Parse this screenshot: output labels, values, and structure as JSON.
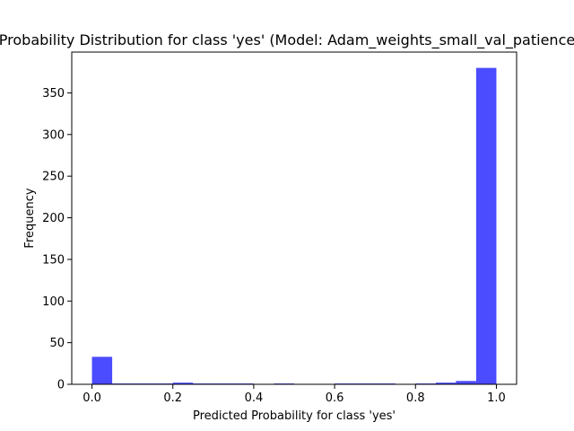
{
  "chart_data": {
    "type": "bar",
    "title": "Probability Distribution for class 'yes' (Model: Adam_weights_small_val_patience",
    "xlabel": "Predicted Probability for class 'yes'",
    "ylabel": "Frequency",
    "xlim": [
      -0.05,
      1.05
    ],
    "ylim": [
      0,
      399
    ],
    "xticks": [
      "0.0",
      "0.2",
      "0.4",
      "0.6",
      "0.8",
      "1.0"
    ],
    "yticks": [
      "0",
      "50",
      "100",
      "150",
      "200",
      "250",
      "300",
      "350"
    ],
    "bar_color": "#4b4bff",
    "bins": [
      {
        "x0": 0.0,
        "x1": 0.05,
        "count": 33
      },
      {
        "x0": 0.05,
        "x1": 0.1,
        "count": 1
      },
      {
        "x0": 0.1,
        "x1": 0.15,
        "count": 1
      },
      {
        "x0": 0.15,
        "x1": 0.2,
        "count": 1
      },
      {
        "x0": 0.2,
        "x1": 0.25,
        "count": 2
      },
      {
        "x0": 0.25,
        "x1": 0.3,
        "count": 1
      },
      {
        "x0": 0.3,
        "x1": 0.35,
        "count": 1
      },
      {
        "x0": 0.35,
        "x1": 0.4,
        "count": 1
      },
      {
        "x0": 0.4,
        "x1": 0.45,
        "count": 0
      },
      {
        "x0": 0.45,
        "x1": 0.5,
        "count": 1
      },
      {
        "x0": 0.5,
        "x1": 0.55,
        "count": 0
      },
      {
        "x0": 0.55,
        "x1": 0.6,
        "count": 0
      },
      {
        "x0": 0.6,
        "x1": 0.65,
        "count": 1
      },
      {
        "x0": 0.65,
        "x1": 0.7,
        "count": 1
      },
      {
        "x0": 0.7,
        "x1": 0.75,
        "count": 1
      },
      {
        "x0": 0.75,
        "x1": 0.8,
        "count": 0
      },
      {
        "x0": 0.8,
        "x1": 0.85,
        "count": 1
      },
      {
        "x0": 0.85,
        "x1": 0.9,
        "count": 2
      },
      {
        "x0": 0.9,
        "x1": 0.95,
        "count": 4
      },
      {
        "x0": 0.95,
        "x1": 1.0,
        "count": 380
      }
    ]
  }
}
